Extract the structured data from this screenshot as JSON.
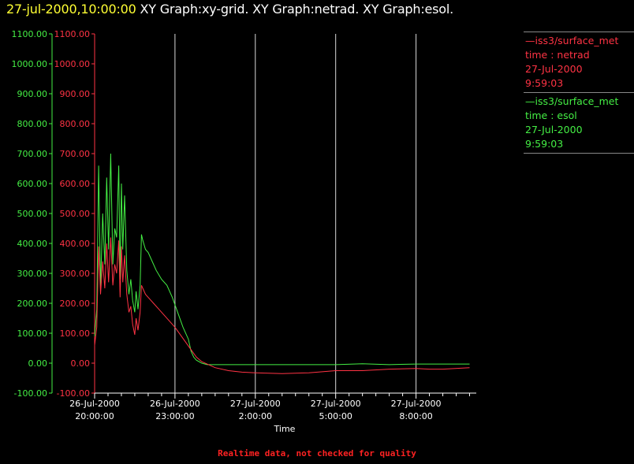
{
  "header": {
    "timestamp": "27-jul-2000,10:00:00",
    "graphs": [
      "XY Graph:xy-grid.",
      "XY Graph:netrad.",
      "XY Graph:esol."
    ]
  },
  "legend": [
    {
      "lines": [
        "—iss3/surface_met",
        "time : netrad",
        "27-Jul-2000",
        "9:59:03"
      ],
      "color": "#ff3344"
    },
    {
      "lines": [
        "—iss3/surface_met",
        "time : esol",
        "27-Jul-2000",
        "9:59:03"
      ],
      "color": "#44ee44"
    }
  ],
  "footer": "Realtime data, not checked for quality",
  "chart_data": {
    "type": "line",
    "xlabel": "Time",
    "ylim": [
      -100,
      1100
    ],
    "xlim": [
      0,
      14.25
    ],
    "yticks": [
      "1100.00",
      "1000.00",
      "900.00",
      "800.00",
      "700.00",
      "600.00",
      "500.00",
      "400.00",
      "300.00",
      "200.00",
      "100.00",
      "0.00",
      "-100.00"
    ],
    "xticks": [
      {
        "x": 0,
        "line1": "26-Jul-2000",
        "line2": "20:00:00"
      },
      {
        "x": 3,
        "line1": "26-Jul-2000",
        "line2": "23:00:00"
      },
      {
        "x": 6,
        "line1": "27-Jul-2000",
        "line2": "2:00:00"
      },
      {
        "x": 9,
        "line1": "27-Jul-2000",
        "line2": "5:00:00"
      },
      {
        "x": 12,
        "line1": "27-Jul-2000",
        "line2": "8:00:00"
      }
    ],
    "grid_vertical": true,
    "series": [
      {
        "name": "esol",
        "color": "#44ee44",
        "x": [
          0,
          0.08,
          0.15,
          0.22,
          0.3,
          0.38,
          0.45,
          0.52,
          0.6,
          0.68,
          0.75,
          0.82,
          0.9,
          0.95,
          1.0,
          1.05,
          1.12,
          1.2,
          1.28,
          1.35,
          1.42,
          1.5,
          1.55,
          1.62,
          1.7,
          1.75,
          1.8,
          1.9,
          2.0,
          2.1,
          2.3,
          2.5,
          2.7,
          2.9,
          3.1,
          3.3,
          3.5,
          3.6,
          3.7,
          3.8,
          4.0,
          4.2,
          4.5,
          5.0,
          6.0,
          7.0,
          8.0,
          9.0,
          10.0,
          11.0,
          12.0,
          13.0,
          14.0
        ],
        "y": [
          90,
          180,
          660,
          250,
          500,
          330,
          620,
          380,
          700,
          330,
          450,
          420,
          660,
          280,
          600,
          380,
          560,
          310,
          230,
          280,
          210,
          170,
          240,
          180,
          260,
          430,
          410,
          380,
          370,
          350,
          310,
          280,
          260,
          220,
          170,
          120,
          80,
          40,
          20,
          10,
          0,
          -5,
          -5,
          -5,
          -5,
          -5,
          -5,
          -5,
          -2,
          -5,
          -3,
          -3,
          -3
        ]
      },
      {
        "name": "netrad",
        "color": "#ff3344",
        "x": [
          0,
          0.08,
          0.15,
          0.22,
          0.3,
          0.38,
          0.45,
          0.52,
          0.6,
          0.68,
          0.75,
          0.82,
          0.9,
          0.95,
          1.0,
          1.05,
          1.12,
          1.2,
          1.28,
          1.35,
          1.42,
          1.5,
          1.55,
          1.62,
          1.7,
          1.75,
          1.8,
          1.9,
          2.0,
          2.2,
          2.4,
          2.6,
          2.8,
          3.0,
          3.2,
          3.4,
          3.6,
          3.8,
          4.0,
          4.5,
          5.0,
          5.5,
          6.0,
          7.0,
          8.0,
          9.0,
          10.0,
          11.0,
          12.0,
          12.5,
          13.0,
          14.0
        ],
        "y": [
          60,
          120,
          390,
          230,
          340,
          250,
          400,
          270,
          420,
          260,
          330,
          300,
          410,
          220,
          390,
          270,
          360,
          230,
          170,
          190,
          130,
          95,
          150,
          110,
          170,
          260,
          250,
          230,
          220,
          200,
          180,
          160,
          140,
          120,
          95,
          70,
          45,
          20,
          5,
          -15,
          -25,
          -30,
          -32,
          -35,
          -32,
          -25,
          -25,
          -20,
          -18,
          -20,
          -20,
          -15
        ]
      }
    ]
  }
}
